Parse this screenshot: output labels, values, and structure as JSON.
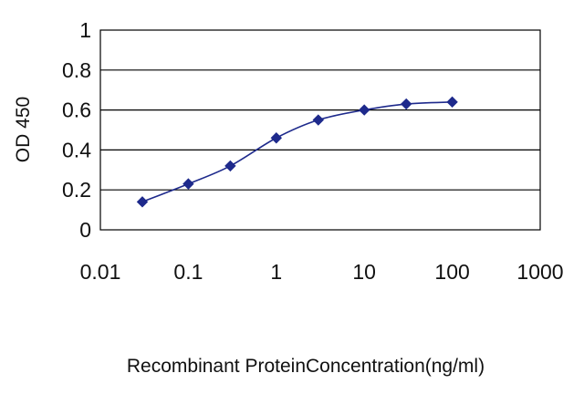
{
  "chart_data": {
    "type": "line",
    "title": "",
    "xlabel": "Recombinant ProteinConcentration(ng/ml)",
    "ylabel": "OD 450",
    "x_scale": "log",
    "xlim": [
      0.01,
      1000
    ],
    "ylim": [
      0,
      1
    ],
    "x_ticks": [
      "0.01",
      "0.1",
      "1",
      "10",
      "100",
      "1000"
    ],
    "y_ticks": [
      "0",
      "0.2",
      "0.4",
      "0.6",
      "0.8",
      "1"
    ],
    "grid": "horizontal",
    "marker": "diamond",
    "colors": {
      "series": "#1e2a8c",
      "grid": "#000000",
      "axis": "#000000"
    },
    "series": [
      {
        "x": [
          0.03,
          0.1,
          0.3,
          1,
          3,
          10,
          30,
          100
        ],
        "y": [
          0.14,
          0.23,
          0.32,
          0.46,
          0.55,
          0.6,
          0.63,
          0.64
        ]
      }
    ]
  }
}
